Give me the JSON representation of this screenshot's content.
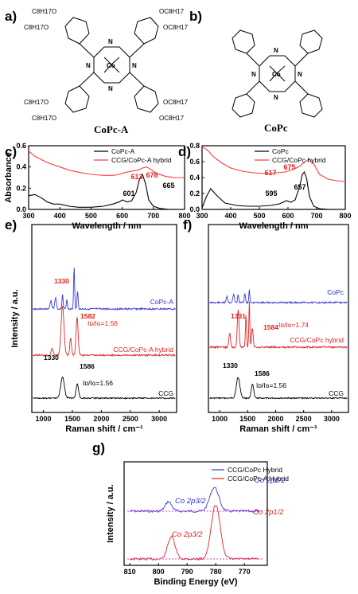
{
  "panels": {
    "a": "a)",
    "b": "b)",
    "c": "c)",
    "d": "d)",
    "e": "e)",
    "f": "f)",
    "g": "g)"
  },
  "molecules": {
    "a_name": "CoPc-A",
    "b_name": "CoPc",
    "substituent": "OC8H17",
    "substituent_left": "C8H17O",
    "metal": "Co",
    "nitrogen": "N"
  },
  "chart_data": [
    {
      "id": "c",
      "type": "line",
      "xlabel": "Wavelength / nm",
      "ylabel": "Absorbance",
      "xlim": [
        300,
        800
      ],
      "ylim": [
        0.0,
        0.6
      ],
      "xticks": [
        "300",
        "400",
        "500",
        "600",
        "700",
        "800"
      ],
      "yticks": [
        "0.0",
        "0.2",
        "0.4",
        "0.6"
      ],
      "legend": [
        "CoPc-A",
        "CCG/CoPc-A hybrid"
      ],
      "legend_position": "top-right",
      "series": [
        {
          "name": "CoPc-A",
          "color": "#000000",
          "x": [
            300,
            320,
            340,
            360,
            380,
            400,
            430,
            460,
            500,
            540,
            570,
            590,
            601,
            615,
            630,
            645,
            655,
            665,
            675,
            685,
            700,
            720,
            750,
            800
          ],
          "y": [
            0.13,
            0.14,
            0.11,
            0.07,
            0.05,
            0.05,
            0.03,
            0.02,
            0.02,
            0.03,
            0.05,
            0.07,
            0.09,
            0.07,
            0.08,
            0.16,
            0.28,
            0.33,
            0.24,
            0.09,
            0.03,
            0.01,
            0.0,
            0.0
          ]
        },
        {
          "name": "CCG/CoPc-A hybrid",
          "color": "#ff3b3b",
          "x": [
            300,
            320,
            340,
            360,
            380,
            400,
            430,
            460,
            500,
            540,
            570,
            590,
            613,
            630,
            650,
            665,
            678,
            690,
            710,
            740,
            770,
            800
          ],
          "y": [
            0.55,
            0.5,
            0.47,
            0.44,
            0.42,
            0.4,
            0.37,
            0.35,
            0.33,
            0.32,
            0.32,
            0.33,
            0.35,
            0.36,
            0.37,
            0.39,
            0.4,
            0.38,
            0.34,
            0.31,
            0.3,
            0.3
          ]
        }
      ],
      "annotations": [
        {
          "text": "665",
          "color": "#000000"
        },
        {
          "text": "601",
          "color": "#000000"
        },
        {
          "text": "613",
          "color": "#e02020"
        },
        {
          "text": "678",
          "color": "#e02020"
        }
      ]
    },
    {
      "id": "d",
      "type": "line",
      "xlabel": "Wavelength / nm",
      "xlim": [
        300,
        800
      ],
      "ylim": [
        0.0,
        0.8
      ],
      "xticks": [
        "300",
        "400",
        "500",
        "600",
        "700",
        "800"
      ],
      "yticks": [
        "0.0",
        "0.2",
        "0.4",
        "0.6",
        "0.8"
      ],
      "legend": [
        "CoPc",
        "CCG/CoPc hybrid"
      ],
      "legend_position": "top-right",
      "series": [
        {
          "name": "CoPc",
          "color": "#000000",
          "x": [
            300,
            315,
            330,
            350,
            380,
            420,
            460,
            500,
            540,
            570,
            595,
            610,
            625,
            640,
            650,
            657,
            665,
            675,
            690,
            710,
            740,
            800
          ],
          "y": [
            0.02,
            0.16,
            0.26,
            0.18,
            0.08,
            0.05,
            0.04,
            0.04,
            0.05,
            0.07,
            0.11,
            0.09,
            0.12,
            0.28,
            0.44,
            0.47,
            0.39,
            0.16,
            0.04,
            0.01,
            0.0,
            0.0
          ]
        },
        {
          "name": "CCG/CoPc hybrid",
          "color": "#ff3b3b",
          "x": [
            300,
            320,
            340,
            370,
            400,
            440,
            480,
            520,
            560,
            590,
            617,
            640,
            660,
            675,
            690,
            710,
            740,
            770,
            800
          ],
          "y": [
            0.79,
            0.74,
            0.66,
            0.58,
            0.52,
            0.48,
            0.46,
            0.45,
            0.46,
            0.47,
            0.5,
            0.54,
            0.6,
            0.63,
            0.57,
            0.44,
            0.38,
            0.36,
            0.35
          ]
        }
      ],
      "annotations": [
        {
          "text": "657",
          "color": "#000000"
        },
        {
          "text": "595",
          "color": "#000000"
        },
        {
          "text": "617",
          "color": "#e02020"
        },
        {
          "text": "675",
          "color": "#e02020"
        }
      ]
    },
    {
      "id": "e",
      "type": "line",
      "xlabel": "Raman shift / cm⁻¹",
      "ylabel": "Intensity / a.u.",
      "xlim": [
        800,
        3300
      ],
      "xticks": [
        "1000",
        "1500",
        "2000",
        "2500",
        "3000"
      ],
      "series_labels": [
        {
          "text": "CoPc-A",
          "color": "#2b2bd6"
        },
        {
          "text": "CCG/CoPc-A hybrid",
          "color": "#e02020"
        },
        {
          "text": "CCG",
          "color": "#000000"
        }
      ],
      "annotations": [
        {
          "text": "1330",
          "color": "#e02020"
        },
        {
          "text": "1582",
          "color": "#e02020"
        },
        {
          "text": "Iᴅ/Iɢ=1.56",
          "color": "#e02020"
        },
        {
          "text": "1330",
          "color": "#000000"
        },
        {
          "text": "1586",
          "color": "#000000"
        },
        {
          "text": "Iᴅ/Iɢ=1.56",
          "color": "#000000"
        }
      ]
    },
    {
      "id": "f",
      "type": "line",
      "xlabel": "Raman shift / cm⁻¹",
      "xlim": [
        800,
        3300
      ],
      "xticks": [
        "1000",
        "1500",
        "2000",
        "2500",
        "3000"
      ],
      "series_labels": [
        {
          "text": "CoPc",
          "color": "#2b2bd6"
        },
        {
          "text": "CCG/CoPc hybrid",
          "color": "#e02020"
        },
        {
          "text": "CCG",
          "color": "#000000"
        }
      ],
      "annotations": [
        {
          "text": "1331",
          "color": "#e02020"
        },
        {
          "text": "1584",
          "color": "#e02020"
        },
        {
          "text": "Iᴅ/Iɢ=1.74",
          "color": "#e02020"
        },
        {
          "text": "1330",
          "color": "#000000"
        },
        {
          "text": "1586",
          "color": "#000000"
        },
        {
          "text": "Iᴅ/Iɢ=1.56",
          "color": "#000000"
        }
      ]
    },
    {
      "id": "g",
      "type": "line",
      "xlabel": "Binding Energy (eV)",
      "ylabel": "Intensity / a.u.",
      "xlim": [
        812,
        762
      ],
      "xticks": [
        "810",
        "800",
        "790",
        "780",
        "770"
      ],
      "legend": [
        "CCG/CoPc Hybrid",
        "CCG/CoPc-A Hybrid"
      ],
      "legend_position": "top-right",
      "annotations": [
        {
          "text": "Co 2p3/2",
          "color": "#2b2bd6"
        },
        {
          "text": "Co 2p1/2",
          "color": "#2b2bd6"
        },
        {
          "text": "Co 2p3/2",
          "color": "#e02020"
        },
        {
          "text": "Co 2p1/2",
          "color": "#e02020"
        }
      ]
    }
  ]
}
